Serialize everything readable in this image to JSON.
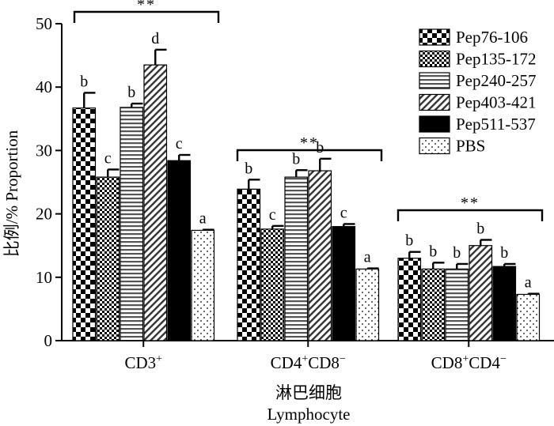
{
  "chart_data": {
    "type": "bar",
    "title": "",
    "ylabel": "比例/% Proportion",
    "xlabel_cn": "淋巴细胞",
    "xlabel_en": "Lymphocyte",
    "ylim": [
      0,
      50
    ],
    "yticks": [
      0,
      10,
      20,
      30,
      40,
      50
    ],
    "categories": [
      {
        "base": "CD3",
        "sup": "+"
      },
      {
        "base": "CD4",
        "sup": "+",
        "base2": "CD8",
        "sup2": "−"
      },
      {
        "base": "CD8",
        "sup": "+",
        "base2": "CD4",
        "sup2": "−"
      }
    ],
    "series": [
      {
        "name": "Pep76-106",
        "pattern": "checker",
        "values": [
          36.7,
          23.9,
          13.0
        ],
        "errors": [
          2.4,
          1.5,
          1.0
        ],
        "letters": [
          "b",
          "b",
          "b"
        ]
      },
      {
        "name": "Pep135-172",
        "pattern": "finecheck",
        "values": [
          25.8,
          17.6,
          11.3
        ],
        "errors": [
          1.2,
          0.5,
          1.0
        ],
        "letters": [
          "c",
          "c",
          "b"
        ]
      },
      {
        "name": "Pep240-257",
        "pattern": "hlines",
        "values": [
          36.8,
          25.8,
          11.3
        ],
        "errors": [
          0.6,
          1.1,
          0.8
        ],
        "letters": [
          "b",
          "b",
          "b"
        ]
      },
      {
        "name": "Pep403-421",
        "pattern": "diag",
        "values": [
          43.5,
          26.8,
          15.0
        ],
        "errors": [
          2.4,
          1.9,
          0.9
        ],
        "letters": [
          "d",
          "b",
          "b"
        ]
      },
      {
        "name": "Pep511-537",
        "pattern": "solid",
        "values": [
          28.4,
          18.0,
          11.7
        ],
        "errors": [
          0.9,
          0.4,
          0.4
        ],
        "letters": [
          "c",
          "c",
          "b"
        ]
      },
      {
        "name": "PBS",
        "pattern": "dots",
        "values": [
          17.4,
          11.3,
          7.3
        ],
        "errors": [
          0.1,
          0.1,
          0.1
        ],
        "letters": [
          "a",
          "a",
          "a"
        ]
      }
    ],
    "significance": [
      "**",
      "**",
      "**"
    ],
    "legend_position": "top-right",
    "grid": false
  }
}
